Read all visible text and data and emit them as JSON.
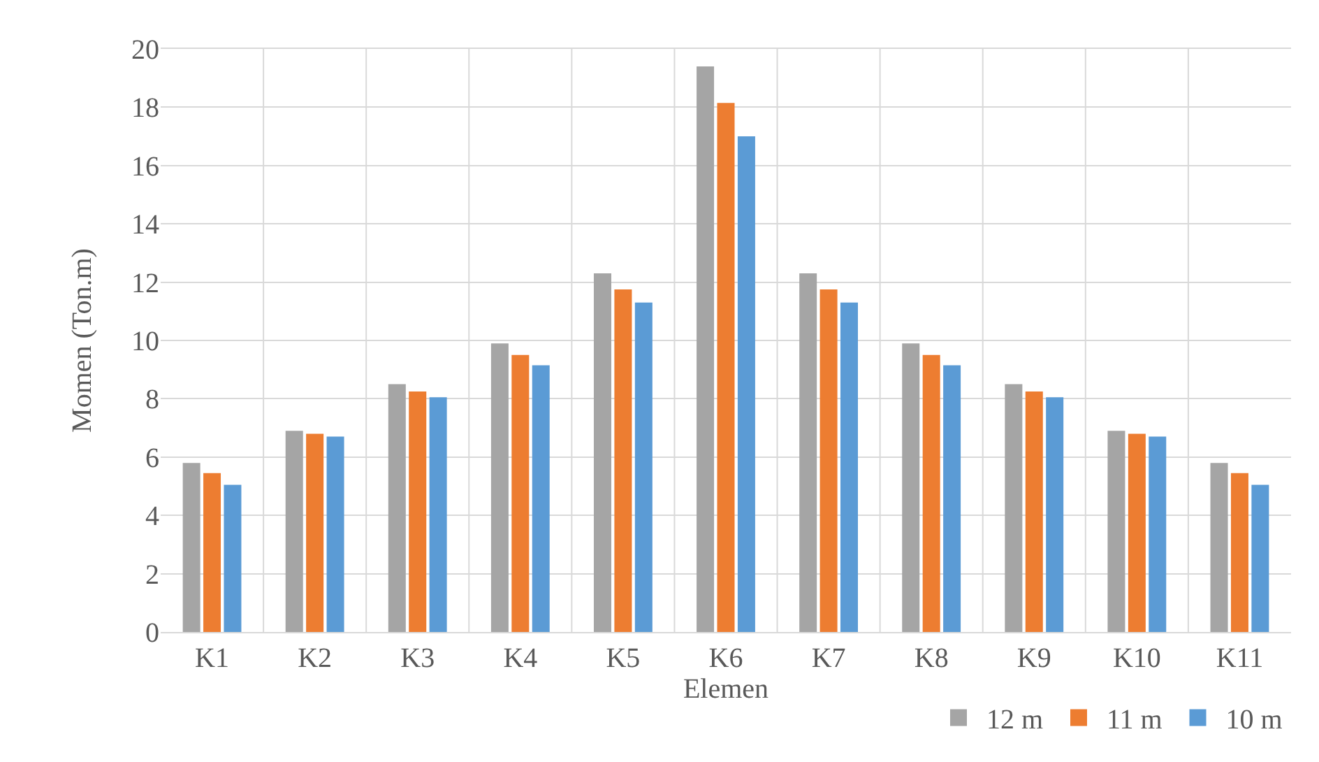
{
  "chart_data": {
    "type": "bar",
    "xlabel": "Elemen",
    "ylabel": "Momen (Ton.m)",
    "categories": [
      "K1",
      "K2",
      "K3",
      "K4",
      "K5",
      "K6",
      "K7",
      "K8",
      "K9",
      "K10",
      "K11"
    ],
    "series": [
      {
        "name": "12 m",
        "color": "#a5a5a5",
        "values": [
          5.8,
          6.9,
          8.5,
          9.9,
          12.3,
          19.4,
          12.3,
          9.9,
          8.5,
          6.9,
          5.8
        ]
      },
      {
        "name": "11 m",
        "color": "#ed7d31",
        "values": [
          5.45,
          6.8,
          8.25,
          9.5,
          11.75,
          18.15,
          11.75,
          9.5,
          8.25,
          6.8,
          5.45
        ]
      },
      {
        "name": "10 m",
        "color": "#5b9bd5",
        "values": [
          5.05,
          6.7,
          8.05,
          9.15,
          11.3,
          17.0,
          11.3,
          9.15,
          8.05,
          6.7,
          5.05
        ]
      }
    ],
    "ylim": [
      0,
      20
    ],
    "yticks": [
      0,
      2,
      4,
      6,
      8,
      10,
      12,
      14,
      16,
      18,
      20
    ],
    "grid": true,
    "legend": "bottom right"
  }
}
